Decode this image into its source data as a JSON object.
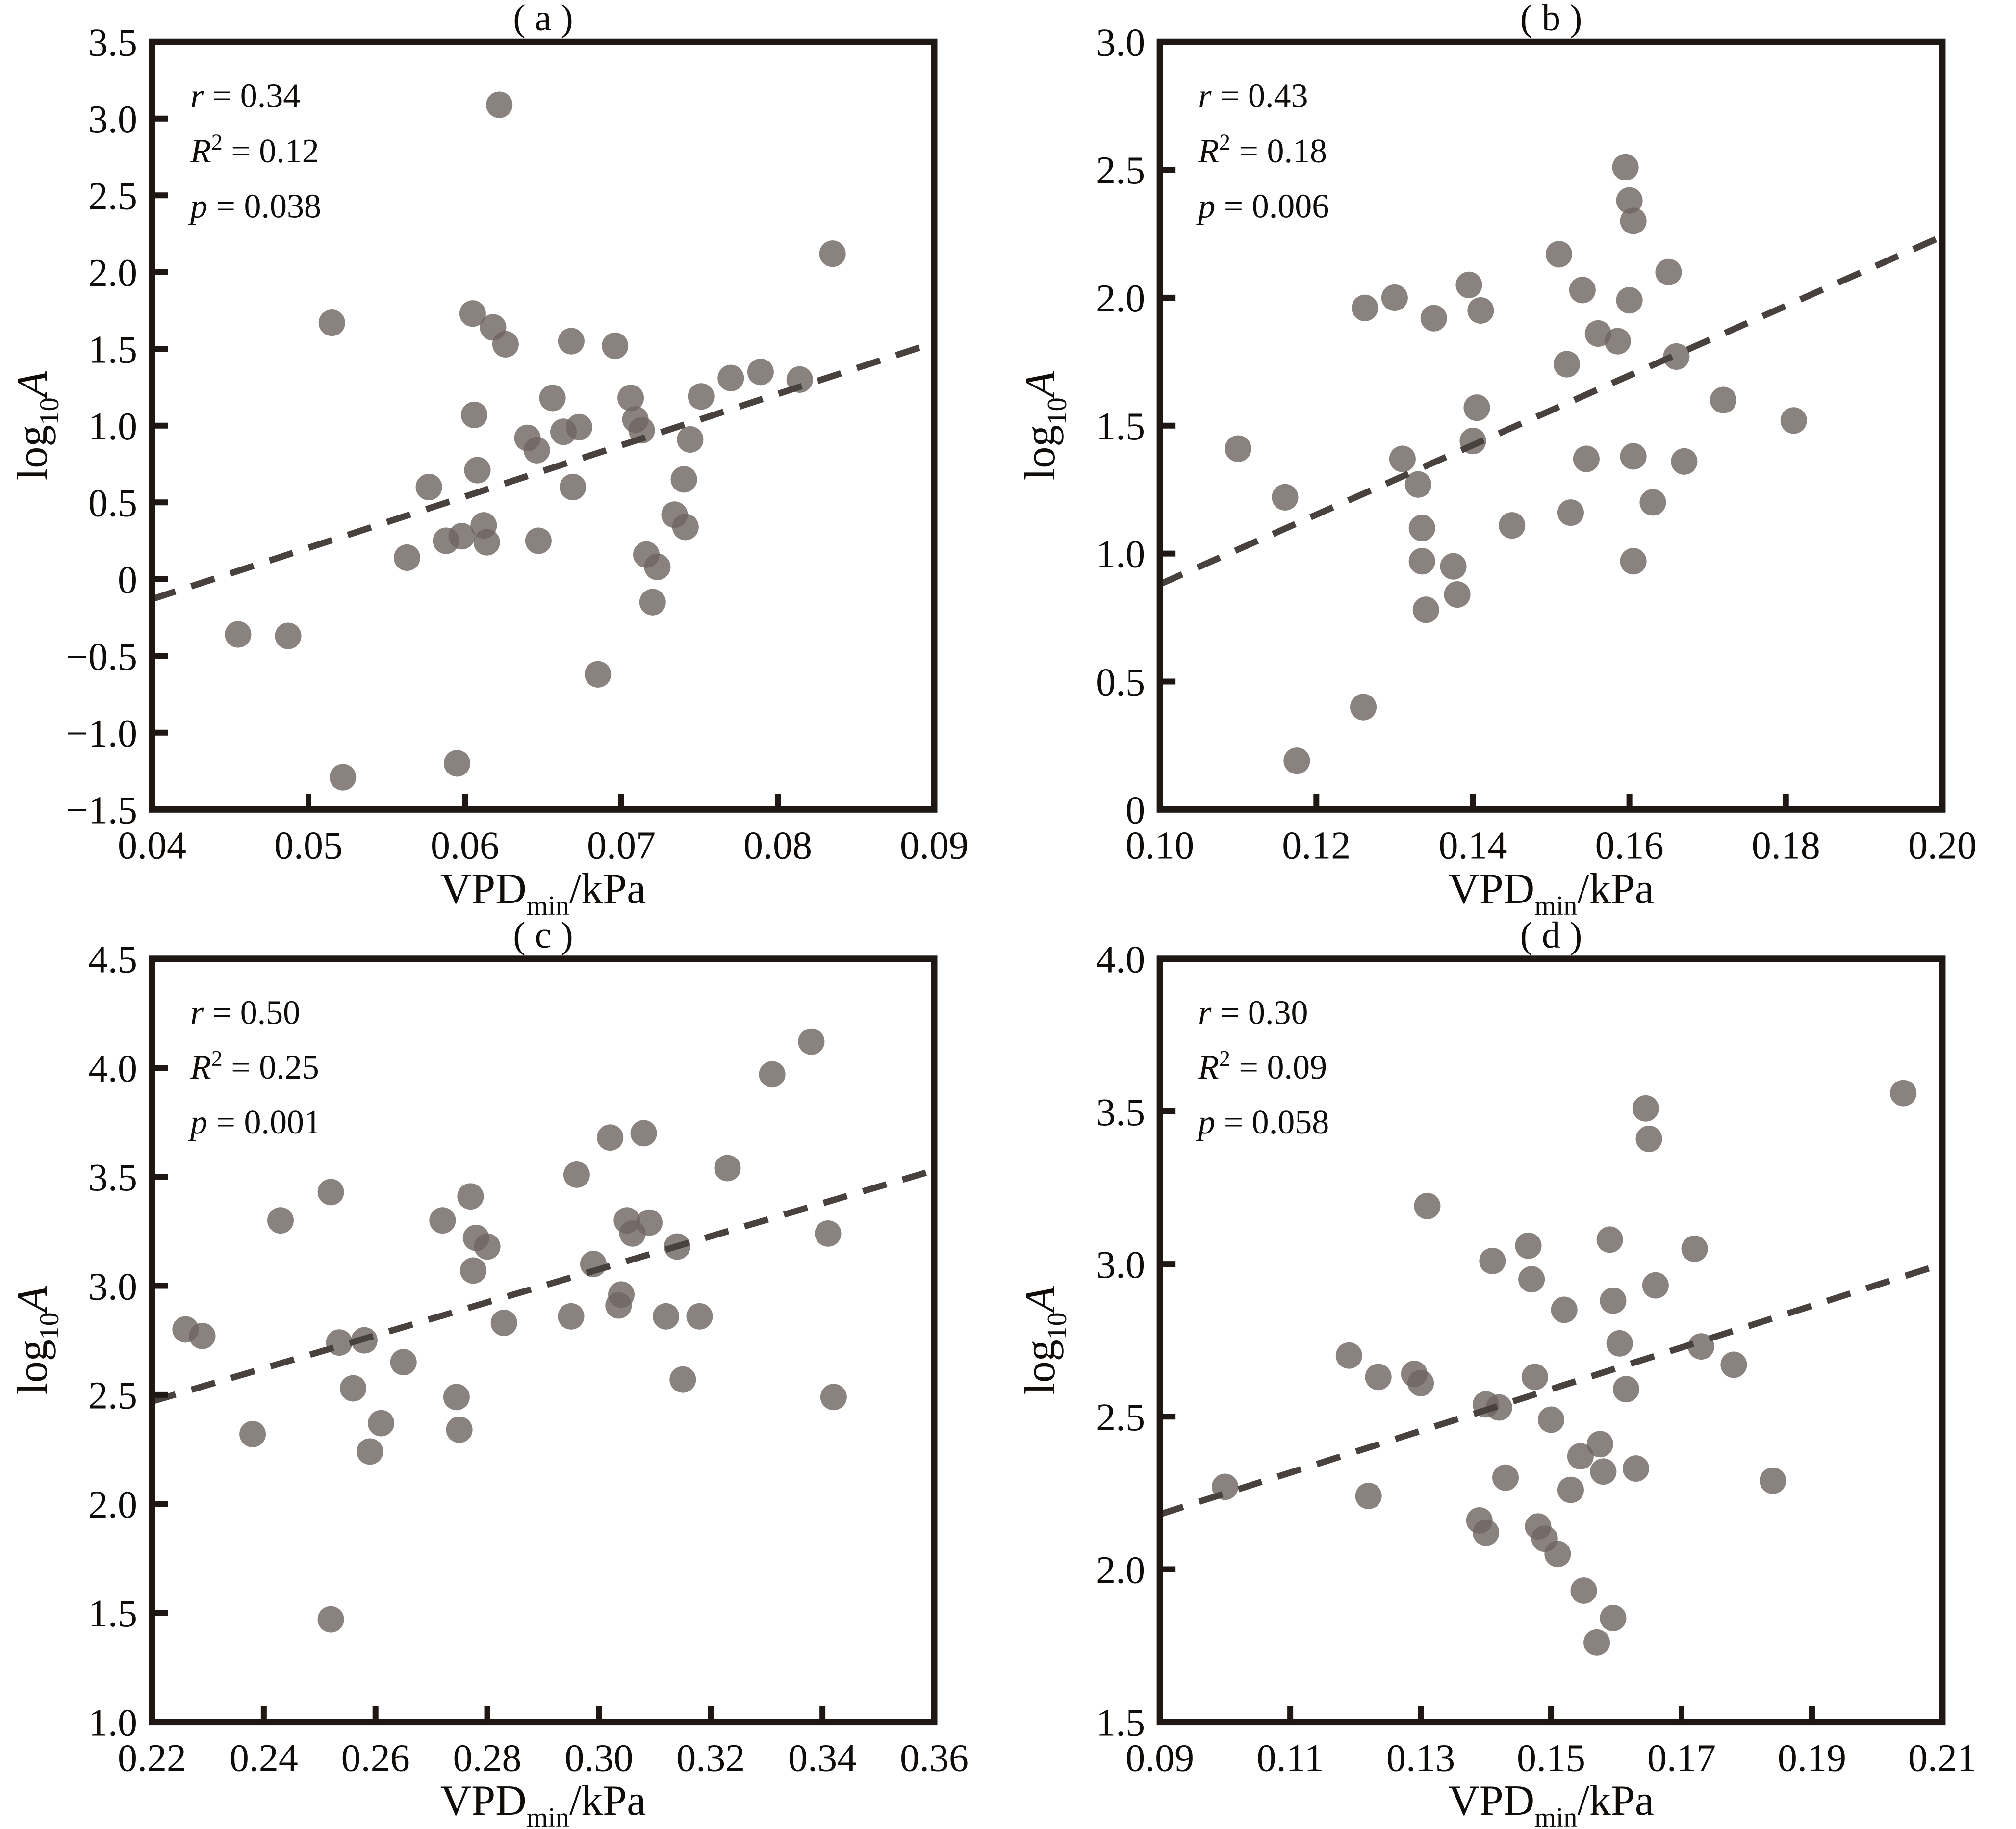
{
  "figure": {
    "background": "#ffffff",
    "marker_color": "#6f6663",
    "marker_opacity": 0.82,
    "marker_radius": 27,
    "axis_color": "#1e1713",
    "text_color": "#0f0c0a",
    "trend_color": "#48413d"
  },
  "chart_data": [
    {
      "id": "a",
      "type": "scatter",
      "title": "( a )",
      "xlabel": {
        "base": "VPD",
        "sub": "min",
        "tail": "/kPa"
      },
      "ylabel": {
        "base": "log",
        "sub": "10",
        "tail": "A"
      },
      "stats": [
        {
          "name": "r",
          "sup": "",
          "value": "0.34"
        },
        {
          "name": "R",
          "sup": "2",
          "value": "0.12"
        },
        {
          "name": "p",
          "sup": "",
          "value": "0.038"
        }
      ],
      "xlim": [
        0.04,
        0.09
      ],
      "ylim": [
        -1.5,
        3.5
      ],
      "xticks": [
        {
          "v": 0.04,
          "label": "0.04"
        },
        {
          "v": 0.05,
          "label": "0.05"
        },
        {
          "v": 0.06,
          "label": "0.06"
        },
        {
          "v": 0.07,
          "label": "0.07"
        },
        {
          "v": 0.08,
          "label": "0.08"
        },
        {
          "v": 0.09,
          "label": "0.09"
        }
      ],
      "yticks": [
        {
          "v": -1.5,
          "label": "−1.5"
        },
        {
          "v": -1.0,
          "label": "−1.0"
        },
        {
          "v": -0.5,
          "label": "−0.5"
        },
        {
          "v": 0,
          "label": "0"
        },
        {
          "v": 0.5,
          "label": "0.5"
        },
        {
          "v": 1.0,
          "label": "1.0"
        },
        {
          "v": 1.5,
          "label": "1.5"
        },
        {
          "v": 2.0,
          "label": "2.0"
        },
        {
          "v": 2.5,
          "label": "2.5"
        },
        {
          "v": 3.0,
          "label": "3.0"
        },
        {
          "v": 3.5,
          "label": "3.5"
        }
      ],
      "trend": [
        [
          0.04,
          -0.13
        ],
        [
          0.09,
          1.54
        ]
      ],
      "points": [
        [
          0.0455,
          -0.36
        ],
        [
          0.0487,
          -0.37
        ],
        [
          0.0515,
          1.67
        ],
        [
          0.0522,
          -1.29
        ],
        [
          0.0563,
          0.14
        ],
        [
          0.0577,
          0.6
        ],
        [
          0.0588,
          0.25
        ],
        [
          0.0595,
          -1.2
        ],
        [
          0.0598,
          0.28
        ],
        [
          0.0605,
          1.73
        ],
        [
          0.0606,
          1.07
        ],
        [
          0.0608,
          0.71
        ],
        [
          0.0612,
          0.35
        ],
        [
          0.0614,
          0.24
        ],
        [
          0.0618,
          1.64
        ],
        [
          0.0622,
          3.09
        ],
        [
          0.0626,
          1.53
        ],
        [
          0.064,
          0.92
        ],
        [
          0.0646,
          0.84
        ],
        [
          0.0647,
          0.25
        ],
        [
          0.0656,
          1.18
        ],
        [
          0.0663,
          0.96
        ],
        [
          0.0668,
          1.55
        ],
        [
          0.0669,
          0.6
        ],
        [
          0.0673,
          0.99
        ],
        [
          0.0685,
          -0.62
        ],
        [
          0.0696,
          1.52
        ],
        [
          0.0706,
          1.18
        ],
        [
          0.0709,
          1.04
        ],
        [
          0.0713,
          0.97
        ],
        [
          0.0716,
          0.16
        ],
        [
          0.0723,
          0.08
        ],
        [
          0.072,
          -0.15
        ],
        [
          0.0734,
          0.42
        ],
        [
          0.0741,
          0.34
        ],
        [
          0.074,
          0.65
        ],
        [
          0.0744,
          0.91
        ],
        [
          0.0751,
          1.19
        ],
        [
          0.077,
          1.31
        ],
        [
          0.0789,
          1.35
        ],
        [
          0.0814,
          1.3
        ],
        [
          0.0835,
          2.12
        ]
      ]
    },
    {
      "id": "b",
      "type": "scatter",
      "title": "( b )",
      "xlabel": {
        "base": "VPD",
        "sub": "min",
        "tail": "/kPa"
      },
      "ylabel": {
        "base": "log",
        "sub": "10",
        "tail": "A"
      },
      "stats": [
        {
          "name": "r",
          "sup": "",
          "value": "0.43"
        },
        {
          "name": "R",
          "sup": "2",
          "value": "0.18"
        },
        {
          "name": "p",
          "sup": "",
          "value": "0.006"
        }
      ],
      "xlim": [
        0.1,
        0.2
      ],
      "ylim": [
        0,
        3.0
      ],
      "xticks": [
        {
          "v": 0.1,
          "label": "0.10"
        },
        {
          "v": 0.12,
          "label": "0.12"
        },
        {
          "v": 0.14,
          "label": "0.14"
        },
        {
          "v": 0.16,
          "label": "0.16"
        },
        {
          "v": 0.18,
          "label": "0.18"
        },
        {
          "v": 0.2,
          "label": "0.20"
        }
      ],
      "yticks": [
        {
          "v": 0,
          "label": "0"
        },
        {
          "v": 0.5,
          "label": "0.5"
        },
        {
          "v": 1.0,
          "label": "1.0"
        },
        {
          "v": 1.5,
          "label": "1.5"
        },
        {
          "v": 2.0,
          "label": "2.0"
        },
        {
          "v": 2.5,
          "label": "2.5"
        },
        {
          "v": 3.0,
          "label": "3.0"
        }
      ],
      "trend": [
        [
          0.1,
          0.88
        ],
        [
          0.2,
          2.24
        ]
      ],
      "points": [
        [
          0.11,
          1.41
        ],
        [
          0.116,
          1.22
        ],
        [
          0.1175,
          0.19
        ],
        [
          0.126,
          0.4
        ],
        [
          0.1262,
          1.96
        ],
        [
          0.13,
          2.0
        ],
        [
          0.131,
          1.37
        ],
        [
          0.133,
          1.27
        ],
        [
          0.1335,
          1.1
        ],
        [
          0.1335,
          0.97
        ],
        [
          0.1375,
          0.95
        ],
        [
          0.138,
          0.84
        ],
        [
          0.134,
          0.78
        ],
        [
          0.135,
          1.92
        ],
        [
          0.1395,
          2.05
        ],
        [
          0.14,
          1.44
        ],
        [
          0.1405,
          1.57
        ],
        [
          0.141,
          1.95
        ],
        [
          0.145,
          1.11
        ],
        [
          0.151,
          2.17
        ],
        [
          0.152,
          1.74
        ],
        [
          0.1525,
          1.16
        ],
        [
          0.154,
          2.03
        ],
        [
          0.1545,
          1.37
        ],
        [
          0.156,
          1.86
        ],
        [
          0.1585,
          1.83
        ],
        [
          0.1595,
          2.51
        ],
        [
          0.16,
          2.38
        ],
        [
          0.1605,
          2.3
        ],
        [
          0.16,
          1.99
        ],
        [
          0.1605,
          1.38
        ],
        [
          0.1605,
          0.97
        ],
        [
          0.163,
          1.2
        ],
        [
          0.165,
          2.1
        ],
        [
          0.166,
          1.77
        ],
        [
          0.167,
          1.36
        ],
        [
          0.172,
          1.6
        ],
        [
          0.181,
          1.52
        ]
      ]
    },
    {
      "id": "c",
      "type": "scatter",
      "title": "( c )",
      "xlabel": {
        "base": "VPD",
        "sub": "min",
        "tail": "/kPa"
      },
      "ylabel": {
        "base": "log",
        "sub": "10",
        "tail": "A"
      },
      "stats": [
        {
          "name": "r",
          "sup": "",
          "value": "0.50"
        },
        {
          "name": "R",
          "sup": "2",
          "value": "0.25"
        },
        {
          "name": "p",
          "sup": "",
          "value": "0.001"
        }
      ],
      "xlim": [
        0.22,
        0.36
      ],
      "ylim": [
        1.0,
        4.5
      ],
      "xticks": [
        {
          "v": 0.22,
          "label": "0.22"
        },
        {
          "v": 0.24,
          "label": "0.24"
        },
        {
          "v": 0.26,
          "label": "0.26"
        },
        {
          "v": 0.28,
          "label": "0.28"
        },
        {
          "v": 0.3,
          "label": "0.30"
        },
        {
          "v": 0.32,
          "label": "0.32"
        },
        {
          "v": 0.34,
          "label": "0.34"
        },
        {
          "v": 0.36,
          "label": "0.36"
        }
      ],
      "yticks": [
        {
          "v": 1.0,
          "label": "1.0"
        },
        {
          "v": 1.5,
          "label": "1.5"
        },
        {
          "v": 2.0,
          "label": "2.0"
        },
        {
          "v": 2.5,
          "label": "2.5"
        },
        {
          "v": 3.0,
          "label": "3.0"
        },
        {
          "v": 3.5,
          "label": "3.5"
        },
        {
          "v": 4.0,
          "label": "4.0"
        },
        {
          "v": 4.5,
          "label": "4.5"
        }
      ],
      "trend": [
        [
          0.22,
          2.47
        ],
        [
          0.36,
          3.53
        ]
      ],
      "points": [
        [
          0.226,
          2.8
        ],
        [
          0.229,
          2.77
        ],
        [
          0.238,
          2.32
        ],
        [
          0.243,
          3.3
        ],
        [
          0.252,
          3.43
        ],
        [
          0.252,
          1.47
        ],
        [
          0.2535,
          2.74
        ],
        [
          0.256,
          2.53
        ],
        [
          0.258,
          2.75
        ],
        [
          0.259,
          2.24
        ],
        [
          0.261,
          2.37
        ],
        [
          0.265,
          2.65
        ],
        [
          0.272,
          3.3
        ],
        [
          0.2745,
          2.49
        ],
        [
          0.275,
          2.34
        ],
        [
          0.277,
          3.41
        ],
        [
          0.2775,
          3.07
        ],
        [
          0.278,
          3.22
        ],
        [
          0.28,
          3.18
        ],
        [
          0.283,
          2.83
        ],
        [
          0.295,
          2.86
        ],
        [
          0.296,
          3.51
        ],
        [
          0.299,
          3.1
        ],
        [
          0.302,
          3.68
        ],
        [
          0.3035,
          2.91
        ],
        [
          0.304,
          2.96
        ],
        [
          0.305,
          3.3
        ],
        [
          0.306,
          3.24
        ],
        [
          0.308,
          3.7
        ],
        [
          0.309,
          3.29
        ],
        [
          0.312,
          2.86
        ],
        [
          0.314,
          3.18
        ],
        [
          0.315,
          2.57
        ],
        [
          0.318,
          2.86
        ],
        [
          0.323,
          3.54
        ],
        [
          0.331,
          3.97
        ],
        [
          0.338,
          4.12
        ],
        [
          0.341,
          3.24
        ],
        [
          0.342,
          2.49
        ]
      ]
    },
    {
      "id": "d",
      "type": "scatter",
      "title": "( d )",
      "xlabel": {
        "base": "VPD",
        "sub": "min",
        "tail": "/kPa"
      },
      "ylabel": {
        "base": "log",
        "sub": "10",
        "tail": "A"
      },
      "stats": [
        {
          "name": "r",
          "sup": "",
          "value": "0.30"
        },
        {
          "name": "R",
          "sup": "2",
          "value": "0.09"
        },
        {
          "name": "p",
          "sup": "",
          "value": "0.058"
        }
      ],
      "xlim": [
        0.09,
        0.21
      ],
      "ylim": [
        1.5,
        4.0
      ],
      "xticks": [
        {
          "v": 0.09,
          "label": "0.09"
        },
        {
          "v": 0.11,
          "label": "0.11"
        },
        {
          "v": 0.13,
          "label": "0.13"
        },
        {
          "v": 0.15,
          "label": "0.15"
        },
        {
          "v": 0.17,
          "label": "0.17"
        },
        {
          "v": 0.19,
          "label": "0.19"
        },
        {
          "v": 0.21,
          "label": "0.21"
        }
      ],
      "yticks": [
        {
          "v": 1.5,
          "label": "1.5"
        },
        {
          "v": 2.0,
          "label": "2.0"
        },
        {
          "v": 2.5,
          "label": "2.5"
        },
        {
          "v": 3.0,
          "label": "3.0"
        },
        {
          "v": 3.5,
          "label": "3.5"
        },
        {
          "v": 4.0,
          "label": "4.0"
        }
      ],
      "trend": [
        [
          0.09,
          2.18
        ],
        [
          0.21,
          3.0
        ]
      ],
      "points": [
        [
          0.1,
          2.27
        ],
        [
          0.119,
          2.7
        ],
        [
          0.122,
          2.24
        ],
        [
          0.1235,
          2.63
        ],
        [
          0.129,
          2.64
        ],
        [
          0.13,
          2.61
        ],
        [
          0.131,
          3.19
        ],
        [
          0.139,
          2.16
        ],
        [
          0.14,
          2.12
        ],
        [
          0.14,
          2.54
        ],
        [
          0.141,
          3.01
        ],
        [
          0.142,
          2.53
        ],
        [
          0.143,
          2.3
        ],
        [
          0.1465,
          3.06
        ],
        [
          0.147,
          2.95
        ],
        [
          0.1475,
          2.63
        ],
        [
          0.148,
          2.14
        ],
        [
          0.149,
          2.1
        ],
        [
          0.15,
          2.49
        ],
        [
          0.151,
          2.05
        ],
        [
          0.152,
          2.85
        ],
        [
          0.153,
          2.26
        ],
        [
          0.1545,
          2.37
        ],
        [
          0.155,
          1.93
        ],
        [
          0.157,
          1.76
        ],
        [
          0.1575,
          2.41
        ],
        [
          0.158,
          2.32
        ],
        [
          0.159,
          3.08
        ],
        [
          0.1595,
          2.88
        ],
        [
          0.1605,
          2.74
        ],
        [
          0.1615,
          2.59
        ],
        [
          0.1595,
          1.84
        ],
        [
          0.163,
          2.33
        ],
        [
          0.1645,
          3.51
        ],
        [
          0.165,
          3.41
        ],
        [
          0.166,
          2.93
        ],
        [
          0.172,
          3.05
        ],
        [
          0.173,
          2.73
        ],
        [
          0.178,
          2.67
        ],
        [
          0.184,
          2.29
        ],
        [
          0.204,
          3.56
        ]
      ]
    }
  ]
}
